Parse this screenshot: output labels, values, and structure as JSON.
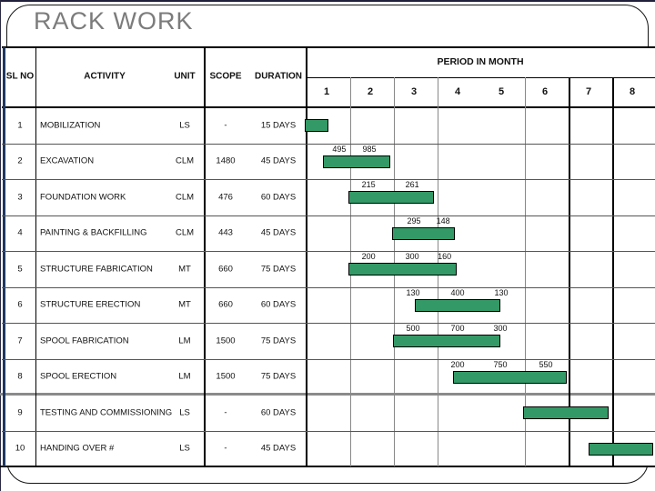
{
  "slide": {
    "title": "RACK WORK"
  },
  "table": {
    "headers": {
      "sl_no": "SL NO",
      "activity": "ACTIVITY",
      "unit": "UNIT",
      "scope": "SCOPE",
      "duration": "DURATION",
      "period": "PERIOD IN MONTH"
    },
    "months": [
      "1",
      "2",
      "3",
      "4",
      "5",
      "6",
      "7",
      "8"
    ]
  },
  "chart_data": {
    "type": "bar",
    "variant": "gantt-schedule",
    "title": "RACK WORK",
    "x_axis": {
      "label": "PERIOD IN MONTH",
      "ticks": [
        "1",
        "2",
        "3",
        "4",
        "5",
        "6",
        "7",
        "8"
      ],
      "range_months": [
        0,
        8
      ],
      "merged_columns": "months 4 and 5 share one wide cell"
    },
    "grid": true,
    "legend": false,
    "bar_color": "#339966",
    "tasks": [
      {
        "sl": "1",
        "activity": "MOBILIZATION",
        "unit": "LS",
        "scope": "-",
        "duration": "15 DAYS",
        "start_month": 0.0,
        "end_month": 0.55,
        "qty_labels": []
      },
      {
        "sl": "2",
        "activity": "EXCAVATION",
        "unit": "CLM",
        "scope": "1480",
        "duration": "45 DAYS",
        "start_month": 0.42,
        "end_month": 1.96,
        "qty_labels": [
          {
            "text": "495",
            "at_month": 0.79
          },
          {
            "text": "985",
            "at_month": 1.48
          }
        ]
      },
      {
        "sl": "3",
        "activity": "FOUNDATION WORK",
        "unit": "CLM",
        "scope": "476",
        "duration": "60 DAYS",
        "start_month": 1.0,
        "end_month": 2.96,
        "qty_labels": [
          {
            "text": "215",
            "at_month": 1.46
          },
          {
            "text": "261",
            "at_month": 2.46
          }
        ]
      },
      {
        "sl": "4",
        "activity": "PAINTING & BACKFILLING",
        "unit": "CLM",
        "scope": "443",
        "duration": "45 DAYS",
        "start_month": 2.0,
        "end_month": 3.44,
        "qty_labels": [
          {
            "text": "295",
            "at_month": 2.5
          },
          {
            "text": "148",
            "at_month": 3.17
          }
        ]
      },
      {
        "sl": "5",
        "activity": "STRUCTURE FABRICATION",
        "unit": "MT",
        "scope": "660",
        "duration": "75 DAYS",
        "start_month": 1.0,
        "end_month": 3.48,
        "qty_labels": [
          {
            "text": "200",
            "at_month": 1.46
          },
          {
            "text": "300",
            "at_month": 2.46
          },
          {
            "text": "160",
            "at_month": 3.2
          }
        ]
      },
      {
        "sl": "6",
        "activity": "STRUCTURE ERECTION",
        "unit": "MT",
        "scope": "660",
        "duration": "60 DAYS",
        "start_month": 2.52,
        "end_month": 4.48,
        "qty_labels": [
          {
            "text": "130",
            "at_month": 2.48
          },
          {
            "text": "400",
            "at_month": 3.5
          },
          {
            "text": "130",
            "at_month": 4.5
          }
        ]
      },
      {
        "sl": "7",
        "activity": "SPOOL FABRICATION",
        "unit": "LM",
        "scope": "1500",
        "duration": "75 DAYS",
        "start_month": 2.02,
        "end_month": 4.48,
        "qty_labels": [
          {
            "text": "500",
            "at_month": 2.48
          },
          {
            "text": "700",
            "at_month": 3.5
          },
          {
            "text": "300",
            "at_month": 4.48
          }
        ]
      },
      {
        "sl": "8",
        "activity": "SPOOL ERECTION",
        "unit": "LM",
        "scope": "1500",
        "duration": "75 DAYS",
        "start_month": 3.4,
        "end_month": 6.0,
        "qty_labels": [
          {
            "text": "200",
            "at_month": 3.5
          },
          {
            "text": "750",
            "at_month": 4.48
          },
          {
            "text": "550",
            "at_month": 5.52
          }
        ]
      },
      {
        "sl": "9",
        "activity": "TESTING AND COMMISSIONING",
        "unit": "LS",
        "scope": "-",
        "duration": "60 DAYS",
        "start_month": 5.0,
        "end_month": 6.96,
        "qty_labels": []
      },
      {
        "sl": "10",
        "activity": "HANDING OVER #",
        "unit": "LS",
        "scope": "-",
        "duration": "45 DAYS",
        "start_month": 6.5,
        "end_month": 7.98,
        "qty_labels": []
      }
    ]
  },
  "colors": {
    "bar_green": "#339966",
    "title_gray": "#7c7c7c",
    "section_divider_gray": "#8a8a8a",
    "table_left_border_navy": "#1f3864"
  }
}
